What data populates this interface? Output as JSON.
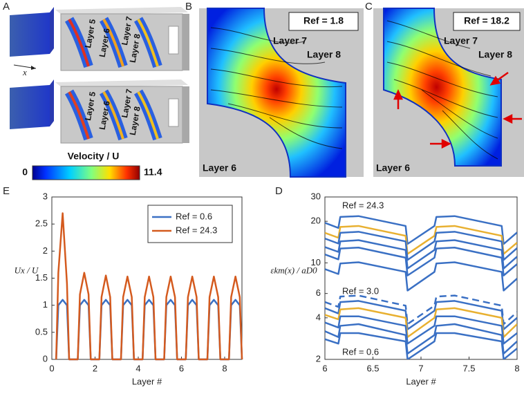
{
  "panels": {
    "A": {
      "letter": "A",
      "axis_label": "x",
      "layer_labels_top": [
        "Layer 5",
        "Layer 7",
        "Layer 6",
        "Layer 8"
      ],
      "layer_labels_bottom": [
        "Layer 5",
        "Layer 7",
        "Layer 6",
        "Layer 8"
      ],
      "colorbar": {
        "label": "Velocity / U",
        "min": 0,
        "max": 11.4
      }
    },
    "B": {
      "letter": "B",
      "box": "Ref = 1.8",
      "labels": [
        "Layer 7",
        "Layer 8",
        "Layer 6"
      ]
    },
    "C": {
      "letter": "C",
      "box": "Ref = 18.2",
      "labels": [
        "Layer 7",
        "Layer 8",
        "Layer 6"
      ]
    },
    "E": {
      "letter": "E"
    },
    "D": {
      "letter": "D"
    }
  },
  "chart_data": [
    {
      "type": "line",
      "x_label": "Layer #",
      "y_label": "Ux / U",
      "xlim": [
        0,
        8.8
      ],
      "xticks": [
        0,
        2,
        4,
        6,
        8
      ],
      "ylim": [
        0,
        3
      ],
      "yticks": [
        0,
        0.5,
        1,
        1.5,
        2,
        2.5,
        3
      ],
      "legend": "upper right",
      "x": [
        0.2,
        0.3,
        0.5,
        0.7,
        0.8,
        1.2,
        1.3,
        1.5,
        1.7,
        1.8,
        2.2,
        2.3,
        2.5,
        2.7,
        2.8,
        3.2,
        3.3,
        3.5,
        3.7,
        3.8,
        4.2,
        4.3,
        4.5,
        4.7,
        4.8,
        5.2,
        5.3,
        5.5,
        5.7,
        5.8,
        6.2,
        6.3,
        6.5,
        6.7,
        6.8,
        7.2,
        7.3,
        7.5,
        7.7,
        7.8,
        8.2,
        8.3,
        8.5,
        8.7,
        8.8
      ],
      "series": [
        {
          "name": "Ref = 0.6",
          "color": "#3a70c4",
          "values": [
            0,
            1.0,
            1.1,
            1.0,
            0,
            0,
            1.0,
            1.1,
            1.0,
            0,
            0,
            1.0,
            1.1,
            1.0,
            0,
            0,
            1.0,
            1.1,
            1.0,
            0,
            0,
            1.0,
            1.1,
            1.0,
            0,
            0,
            1.0,
            1.1,
            1.0,
            0,
            0,
            1.0,
            1.1,
            1.0,
            0,
            0,
            1.0,
            1.1,
            1.0,
            0,
            0,
            1.0,
            1.1,
            1.0,
            0
          ]
        },
        {
          "name": "Ref = 24.3",
          "color": "#d45a1e",
          "values": [
            0,
            1.6,
            2.7,
            1.4,
            0,
            0,
            1.2,
            1.6,
            1.2,
            0,
            0,
            1.15,
            1.55,
            1.15,
            0,
            0,
            1.15,
            1.53,
            1.15,
            0,
            0,
            1.15,
            1.53,
            1.15,
            0,
            0,
            1.15,
            1.53,
            1.15,
            0,
            0,
            1.15,
            1.53,
            1.15,
            0,
            0,
            1.15,
            1.53,
            1.15,
            0,
            0,
            1.15,
            1.53,
            1.15,
            0
          ]
        }
      ]
    },
    {
      "type": "line",
      "x_label": "Layer #",
      "y_label": "εkm(x) / aD0",
      "log_y": true,
      "xlim": [
        6,
        8
      ],
      "xticks": [
        6,
        6.5,
        7,
        7.5,
        8
      ],
      "ylim": [
        2,
        30
      ],
      "yticks": [
        2,
        4,
        6,
        10,
        20,
        30
      ],
      "annotations": [
        "Ref = 24.3",
        "Ref = 3.0",
        "Ref = 0.6"
      ],
      "x": [
        6,
        6.14,
        6.16,
        6.35,
        6.84,
        6.86,
        7.14,
        7.16,
        7.35,
        7.84,
        7.86,
        8
      ],
      "series": [
        {
          "color": "#3a70c4",
          "values": [
            19.5,
            17.9,
            21.5,
            21.8,
            18.5,
            13.7,
            18.5,
            21.5,
            21.8,
            18.5,
            13.7,
            16.6
          ]
        },
        {
          "color": "#e8b030",
          "values": [
            16.5,
            15.2,
            18.2,
            18.5,
            15.7,
            11.6,
            15.7,
            18.2,
            18.5,
            15.7,
            11.6,
            14.0
          ]
        },
        {
          "color": "#3a70c4",
          "values": [
            15,
            13.8,
            16.5,
            16.8,
            14.3,
            10.5,
            14.3,
            16.5,
            16.8,
            14.3,
            10.5,
            12.8
          ]
        },
        {
          "color": "#3a70c4",
          "values": [
            13,
            12,
            14.3,
            14.6,
            12.4,
            9.1,
            12.4,
            14.3,
            14.6,
            12.4,
            9.1,
            11.1
          ]
        },
        {
          "color": "#3a70c4",
          "values": [
            11.5,
            10.6,
            12.7,
            12.9,
            10.9,
            8.1,
            10.9,
            12.7,
            12.9,
            10.9,
            8.1,
            9.8
          ]
        },
        {
          "color": "#3a70c4",
          "values": [
            9,
            8.3,
            9.9,
            10.1,
            8.6,
            6.3,
            8.6,
            9.9,
            10.1,
            8.6,
            6.3,
            7.7
          ]
        },
        {
          "color": "#3a70c4",
          "dashed": true,
          "values": [
            5.2,
            4.8,
            5.7,
            5.8,
            4.9,
            3.6,
            4.9,
            5.7,
            5.8,
            4.9,
            3.6,
            4.4
          ]
        },
        {
          "color": "#3a70c4",
          "values": [
            4.7,
            4.3,
            5.2,
            5.3,
            4.5,
            3.3,
            4.5,
            5.2,
            5.3,
            4.5,
            3.3,
            4.0
          ]
        },
        {
          "color": "#e8b030",
          "values": [
            4.2,
            3.9,
            4.6,
            4.7,
            4.0,
            2.9,
            4.0,
            4.6,
            4.7,
            4.0,
            2.9,
            3.6
          ]
        },
        {
          "color": "#3a70c4",
          "values": [
            3.7,
            3.4,
            4.1,
            4.1,
            3.5,
            2.6,
            3.5,
            4.1,
            4.1,
            3.5,
            2.6,
            3.1
          ]
        },
        {
          "color": "#3a70c4",
          "values": [
            3.2,
            2.9,
            3.5,
            3.6,
            3.0,
            2.2,
            3.0,
            3.5,
            3.6,
            3.0,
            2.2,
            2.7
          ]
        },
        {
          "color": "#3a70c4",
          "values": [
            2.8,
            2.6,
            3.1,
            3.1,
            2.7,
            2.0,
            2.7,
            3.1,
            3.1,
            2.7,
            2.0,
            2.4
          ]
        }
      ]
    }
  ]
}
